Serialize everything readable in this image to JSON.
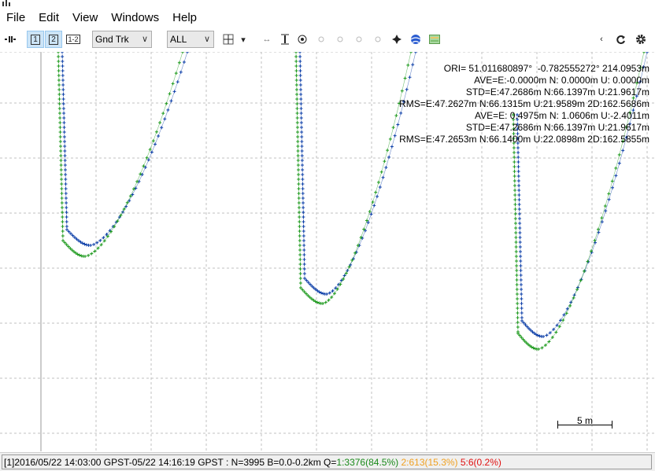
{
  "menu": [
    "File",
    "Edit",
    "View",
    "Windows",
    "Help"
  ],
  "toolbar": {
    "btn1": "1",
    "btn2": "2",
    "btn12": "1-2",
    "plot_type": "Gnd Trk",
    "sat_filter": "ALL"
  },
  "stats": [
    "ORI= 51.011680897°  -0.782555272° 214.0953m",
    "AVE=E:-0.0000m N: 0.0000m U: 0.0000m",
    "STD=E:47.2686m N:66.1397m U:21.9617m",
    "RMS=E:47.2627m N:66.1315m U:21.9589m 2D:162.5686m",
    "AVE=E: 0.4975m N: 1.0606m U:-2.4011m",
    "STD=E:47.2686m N:66.1397m U:21.9617m",
    "RMS=E:47.2653m N:66.1400m U:22.0898m 2D:162.5855m"
  ],
  "scale_label": "5 m",
  "status": {
    "prefix": "[1]2016/05/22 14:03:00 GPST-05/22 14:16:19 GPST : N=3995 B=0.0-0.2km Q=",
    "q1": "1:3376(84.5%)",
    "q2": "2:613(15.3%)",
    "q5": "5:6(0.2%)"
  },
  "colors": {
    "q1": "#1a8a1a",
    "q2": "#f0a020",
    "q5": "#e01010",
    "track1": "#0d3fa8",
    "track2": "#1e9a1e",
    "grid": "#c0c0c0"
  },
  "icons": [
    "pause-icon",
    "crosshair-icon",
    "fit-vertical-icon",
    "target-icon",
    "globe-icon",
    "map-icon",
    "refresh-icon",
    "settings-icon"
  ]
}
